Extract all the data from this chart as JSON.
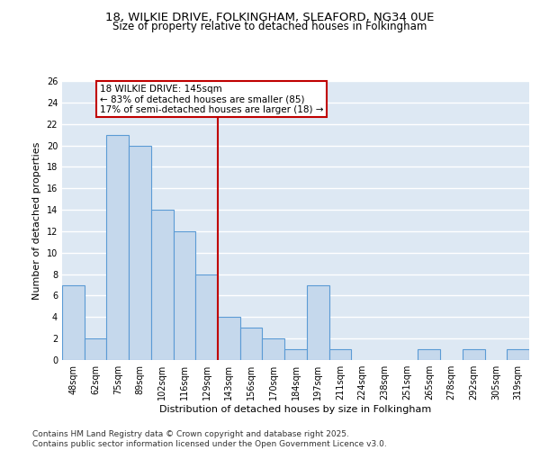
{
  "title1": "18, WILKIE DRIVE, FOLKINGHAM, SLEAFORD, NG34 0UE",
  "title2": "Size of property relative to detached houses in Folkingham",
  "xlabel": "Distribution of detached houses by size in Folkingham",
  "ylabel": "Number of detached properties",
  "categories": [
    "48sqm",
    "62sqm",
    "75sqm",
    "89sqm",
    "102sqm",
    "116sqm",
    "129sqm",
    "143sqm",
    "156sqm",
    "170sqm",
    "184sqm",
    "197sqm",
    "211sqm",
    "224sqm",
    "238sqm",
    "251sqm",
    "265sqm",
    "278sqm",
    "292sqm",
    "305sqm",
    "319sqm"
  ],
  "values": [
    7,
    2,
    21,
    20,
    14,
    12,
    8,
    4,
    3,
    2,
    1,
    7,
    1,
    0,
    0,
    0,
    1,
    0,
    1,
    0,
    1
  ],
  "bar_color": "#c5d8ec",
  "bar_edge_color": "#5b9bd5",
  "bar_edge_width": 0.8,
  "vline_index": 7,
  "vline_color": "#c00000",
  "annotation_title": "18 WILKIE DRIVE: 145sqm",
  "annotation_line1": "← 83% of detached houses are smaller (85)",
  "annotation_line2": "17% of semi-detached houses are larger (18) →",
  "annotation_box_color": "#c00000",
  "annotation_bg": "#ffffff",
  "ylim": [
    0,
    26
  ],
  "yticks": [
    0,
    2,
    4,
    6,
    8,
    10,
    12,
    14,
    16,
    18,
    20,
    22,
    24,
    26
  ],
  "background_color": "#dde8f3",
  "grid_color": "#ffffff",
  "footer1": "Contains HM Land Registry data © Crown copyright and database right 2025.",
  "footer2": "Contains public sector information licensed under the Open Government Licence v3.0.",
  "title1_fontsize": 9.5,
  "title2_fontsize": 8.5,
  "axis_label_fontsize": 8,
  "tick_fontsize": 7,
  "footer_fontsize": 6.5,
  "annotation_fontsize": 7.5
}
